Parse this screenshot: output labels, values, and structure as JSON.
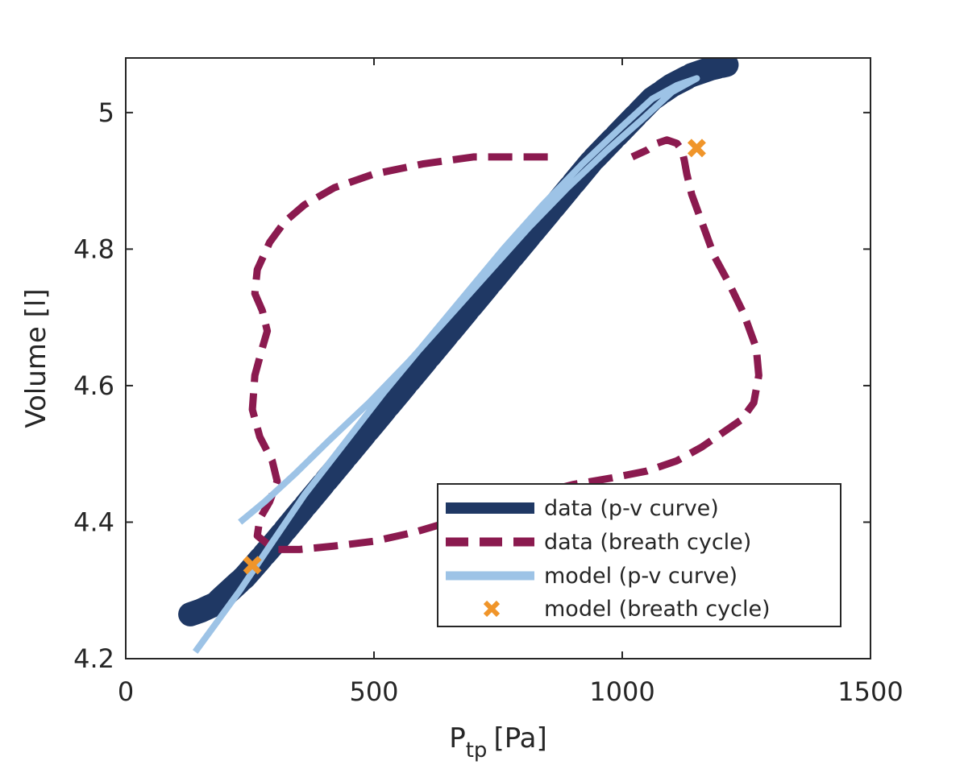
{
  "chart_data": {
    "type": "line",
    "title": "",
    "xlabel_main": "P",
    "xlabel_sub": "tp",
    "xlabel_unit": "[Pa]",
    "ylabel": "Volume [l]",
    "xlim": [
      0,
      1500
    ],
    "ylim": [
      4.2,
      5.08
    ],
    "x_ticks": [
      0,
      500,
      1000,
      1500
    ],
    "x_tick_labels": [
      "0",
      "500",
      "1000",
      "1500"
    ],
    "y_ticks": [
      4.2,
      4.4,
      4.6,
      4.8,
      5.0
    ],
    "y_tick_labels": [
      "4.2",
      "4.4",
      "4.6",
      "4.8",
      "5"
    ],
    "grid": false,
    "legend_position": "bottom-right",
    "colors": {
      "data_pv": "#1f3864",
      "data_breath": "#8b1a4f",
      "model_pv": "#9dc3e6",
      "model_breath": "#f0952a"
    },
    "series": [
      {
        "name": "data (p-v curve)",
        "style": "thick-scribble",
        "x": [
          130,
          150,
          180,
          210,
          240,
          270,
          300,
          340,
          380,
          420,
          460,
          500,
          540,
          580,
          620,
          660,
          700,
          740,
          780,
          820,
          860,
          900,
          940,
          980,
          1020,
          1060,
          1100,
          1140,
          1180,
          1210
        ],
        "y": [
          4.265,
          4.27,
          4.28,
          4.3,
          4.32,
          4.345,
          4.37,
          4.405,
          4.44,
          4.475,
          4.51,
          4.545,
          4.58,
          4.615,
          4.65,
          4.685,
          4.72,
          4.755,
          4.79,
          4.825,
          4.86,
          4.895,
          4.93,
          4.96,
          4.99,
          5.02,
          5.04,
          5.055,
          5.065,
          5.07
        ]
      },
      {
        "name": "data (breath cycle)",
        "style": "dashed",
        "x": [
          850,
          780,
          700,
          600,
          500,
          420,
          360,
          320,
          290,
          265,
          260,
          275,
          285,
          275,
          260,
          255,
          270,
          295,
          305,
          290,
          270,
          265,
          300,
          350,
          420,
          500,
          580,
          650,
          730,
          820,
          900,
          980,
          1050,
          1110,
          1160,
          1200,
          1240,
          1265,
          1275,
          1270,
          1245,
          1215,
          1185,
          1160,
          1140,
          1130,
          1125,
          1120,
          1110,
          1090,
          1070,
          1050,
          1020
        ],
        "y": [
          4.935,
          4.935,
          4.935,
          4.925,
          4.91,
          4.89,
          4.865,
          4.84,
          4.81,
          4.77,
          4.735,
          4.71,
          4.68,
          4.655,
          4.615,
          4.565,
          4.525,
          4.49,
          4.46,
          4.43,
          4.405,
          4.38,
          4.36,
          4.36,
          4.365,
          4.372,
          4.385,
          4.4,
          4.42,
          4.44,
          4.455,
          4.465,
          4.475,
          4.49,
          4.51,
          4.53,
          4.55,
          4.575,
          4.615,
          4.655,
          4.705,
          4.75,
          4.79,
          4.84,
          4.88,
          4.91,
          4.93,
          4.945,
          4.955,
          4.96,
          4.955,
          4.945,
          4.935
        ]
      },
      {
        "name": "model (p-v curve)",
        "style": "solid-light",
        "x": [
          140,
          180,
          230,
          290,
          360,
          440,
          520,
          600,
          680,
          760,
          840,
          920,
          1000,
          1060,
          1110,
          1150,
          1100,
          1040,
          970,
          890,
          810,
          730,
          650,
          570,
          490,
          410,
          340,
          280,
          230
        ],
        "y": [
          4.21,
          4.25,
          4.3,
          4.365,
          4.44,
          4.515,
          4.59,
          4.66,
          4.73,
          4.8,
          4.865,
          4.925,
          4.98,
          5.02,
          5.04,
          5.05,
          5.03,
          4.99,
          4.945,
          4.89,
          4.83,
          4.765,
          4.7,
          4.635,
          4.575,
          4.52,
          4.47,
          4.43,
          4.4
        ]
      },
      {
        "name": "model (breath cycle)",
        "style": "marker-x",
        "x": [
          255,
          1150
        ],
        "y": [
          4.337,
          4.948
        ]
      }
    ]
  }
}
